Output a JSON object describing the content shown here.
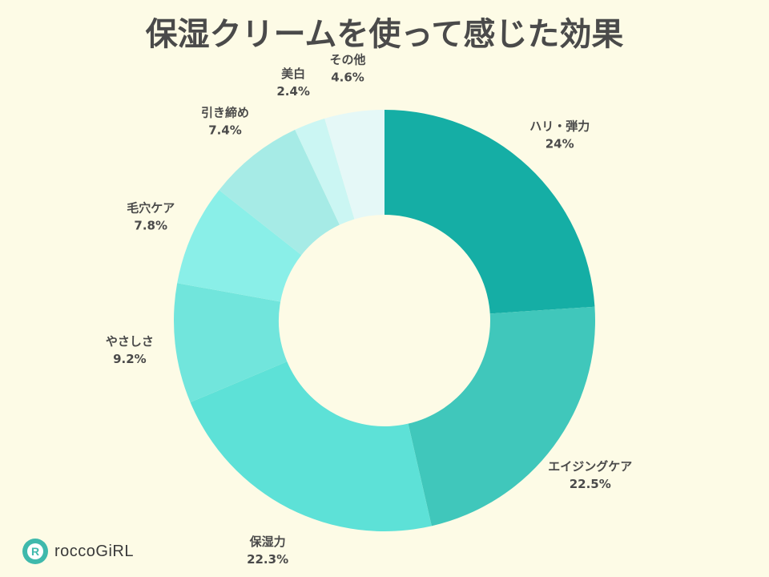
{
  "chart_data": {
    "type": "pie",
    "title": "保湿クリームを使って感じた効果",
    "donut": true,
    "slices": [
      {
        "label": "ハリ・弾力",
        "value": 24,
        "display": "24%",
        "color": "#15aea5"
      },
      {
        "label": "エイジングケア",
        "value": 22.5,
        "display": "22.5%",
        "color": "#40c7bb"
      },
      {
        "label": "保湿力",
        "value": 22.3,
        "display": "22.3%",
        "color": "#5de1d7"
      },
      {
        "label": "やさしさ",
        "value": 9.2,
        "display": "9.2%",
        "color": "#71e5dc"
      },
      {
        "label": "毛穴ケア",
        "value": 7.8,
        "display": "7.8%",
        "color": "#8aefe8"
      },
      {
        "label": "引き締め",
        "value": 7.4,
        "display": "7.4%",
        "color": "#a6ebe6"
      },
      {
        "label": "美白",
        "value": 2.4,
        "display": "2.4%",
        "color": "#cbf6f3"
      },
      {
        "label": "その他",
        "value": 4.6,
        "display": "4.6%",
        "color": "#e5f8f7"
      }
    ]
  },
  "logo": {
    "text": "roccoGiRL",
    "badge_letter": "R"
  }
}
